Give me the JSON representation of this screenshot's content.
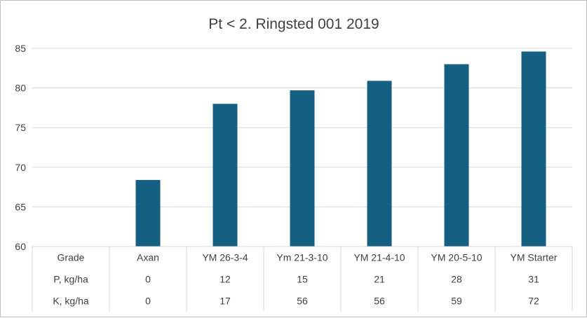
{
  "chart_data": {
    "type": "bar",
    "title": "Pt < 2. Ringsted 001 2019",
    "categories": [
      "Axan",
      "YM 26-3-4",
      "Ym 21-3-10",
      "YM 21-4-10",
      "YM 20-5-10",
      "YM Starter"
    ],
    "values": [
      68.4,
      78.0,
      79.7,
      80.9,
      83.0,
      84.6
    ],
    "ylim": [
      60,
      85
    ],
    "yticks": [
      60,
      65,
      70,
      75,
      80,
      85
    ],
    "ytick_labels": [
      "60",
      "65",
      "70",
      "75",
      "80",
      "85"
    ],
    "grid": true,
    "bar_color": "#145F82",
    "data_table": {
      "header_label": "Grade",
      "rows": [
        {
          "label": "P, kg/ha",
          "values": [
            "0",
            "12",
            "15",
            "21",
            "28",
            "31"
          ]
        },
        {
          "label": "K, kg/ha",
          "values": [
            "0",
            "17",
            "56",
            "56",
            "59",
            "72"
          ]
        }
      ]
    }
  }
}
